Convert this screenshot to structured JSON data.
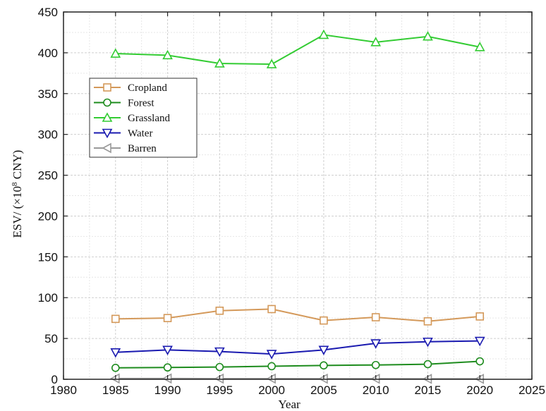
{
  "chart_data": {
    "type": "line",
    "title": "",
    "xlabel": "Year",
    "ylabel_main": "ESV/ (×10",
    "ylabel_sup": "8",
    "ylabel_tail": " CNY)",
    "xlim": [
      1980,
      2025
    ],
    "ylim": [
      0,
      450
    ],
    "x_ticks": [
      1980,
      1985,
      1990,
      1995,
      2000,
      2005,
      2010,
      2015,
      2020,
      2025
    ],
    "y_ticks": [
      0,
      50,
      100,
      150,
      200,
      250,
      300,
      350,
      400,
      450
    ],
    "grid": true,
    "legend_position": "upper-left",
    "x": [
      1985,
      1990,
      1995,
      2000,
      2005,
      2010,
      2015,
      2020
    ],
    "series": [
      {
        "name": "Cropland",
        "marker": "square",
        "color": "#d4995a",
        "values": [
          74,
          75,
          84,
          86,
          72,
          76,
          71,
          77
        ]
      },
      {
        "name": "Forest",
        "marker": "circle",
        "color": "#1e8c1e",
        "values": [
          14,
          14.5,
          15,
          16,
          17,
          17.5,
          18.5,
          22
        ]
      },
      {
        "name": "Grassland",
        "marker": "triangle-up",
        "color": "#33cc33",
        "values": [
          399,
          397,
          387,
          386,
          422,
          413,
          420,
          407
        ]
      },
      {
        "name": "Water",
        "marker": "triangle-down",
        "color": "#1a1ab0",
        "values": [
          33,
          36,
          34,
          31,
          36,
          44,
          46,
          47
        ]
      },
      {
        "name": "Barren",
        "marker": "triangle-left",
        "color": "#999999",
        "values": [
          1,
          1,
          0.8,
          0.8,
          0.7,
          0.6,
          0.5,
          0.5
        ]
      }
    ]
  }
}
